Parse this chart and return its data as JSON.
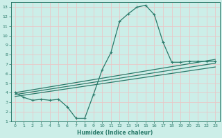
{
  "xlabel": "Humidex (Indice chaleur)",
  "bg_color": "#cceee8",
  "grid_color": "#e8c8c8",
  "line_color": "#2a7a6a",
  "xlim": [
    -0.5,
    23.5
  ],
  "ylim": [
    1,
    13.5
  ],
  "xticks": [
    0,
    1,
    2,
    3,
    4,
    5,
    6,
    7,
    8,
    9,
    10,
    11,
    12,
    13,
    14,
    15,
    16,
    17,
    18,
    19,
    20,
    21,
    22,
    23
  ],
  "yticks": [
    1,
    2,
    3,
    4,
    5,
    6,
    7,
    8,
    9,
    10,
    11,
    12,
    13
  ],
  "line1_x": [
    0,
    1,
    2,
    3,
    4,
    5,
    6,
    7,
    8,
    9,
    10,
    11,
    12,
    13,
    14,
    15,
    16,
    17,
    18,
    19,
    20,
    21,
    22,
    23
  ],
  "line1_y": [
    4.0,
    3.5,
    3.2,
    3.3,
    3.2,
    3.3,
    2.5,
    1.3,
    1.3,
    3.8,
    6.4,
    8.2,
    11.5,
    12.3,
    13.0,
    13.2,
    12.2,
    9.3,
    7.2,
    7.2,
    7.3,
    7.3,
    7.3,
    7.3
  ],
  "line2_x": [
    0,
    23
  ],
  "line2_y": [
    4.0,
    7.5
  ],
  "line3_x": [
    0,
    23
  ],
  "line3_y": [
    3.8,
    7.1
  ],
  "line4_x": [
    0,
    23
  ],
  "line4_y": [
    3.6,
    6.7
  ]
}
